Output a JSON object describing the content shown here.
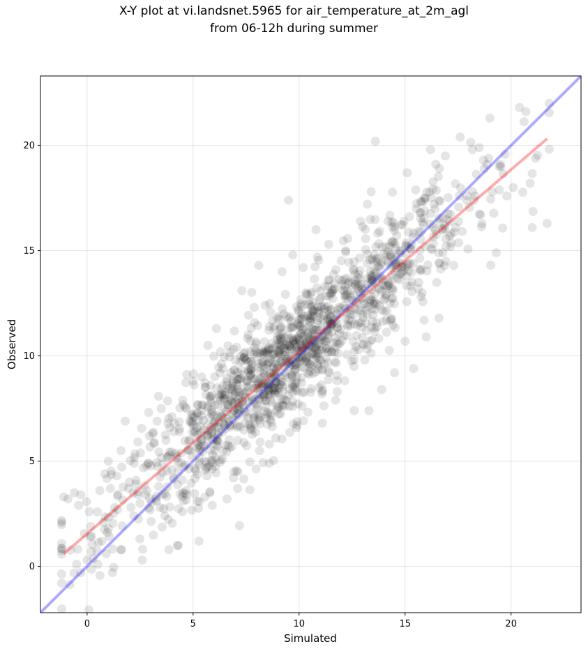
{
  "chart_data": {
    "type": "scatter",
    "title": "X-Y plot at vi.landsnet.5965 for air_temperature_at_2m_agl",
    "subtitle": "from 06-12h during summer",
    "xlabel": "Simulated",
    "ylabel": "Observed",
    "xlim": [
      -2.2,
      23.3
    ],
    "ylim": [
      -2.2,
      23.3
    ],
    "xticks": [
      0,
      5,
      10,
      15,
      20
    ],
    "yticks": [
      0,
      5,
      10,
      15,
      20
    ],
    "grid": true,
    "marker_color": "#000000",
    "marker_alpha": 0.1,
    "reference_line": {
      "slope": 1.0,
      "intercept": 0.0,
      "color": "#0000ff"
    },
    "fit_line": {
      "slope": 0.865,
      "intercept": 1.55,
      "x_range": [
        -1.1,
        21.7
      ],
      "color": "#ff0000"
    },
    "n_points": 1500,
    "points": [
      [
        -1.1,
        3.3
      ],
      [
        -0.9,
        3.2
      ],
      [
        -0.6,
        3.5
      ],
      [
        -0.3,
        3.4
      ],
      [
        -0.4,
        2.9
      ],
      [
        0.1,
        2.6
      ],
      [
        -0.5,
        0.1
      ],
      [
        -0.3,
        -0.3
      ],
      [
        0.0,
        0.3
      ],
      [
        0.2,
        0.7
      ],
      [
        0.5,
        0.1
      ],
      [
        0.7,
        1.2
      ],
      [
        0.9,
        0.6
      ],
      [
        1.2,
        -0.3
      ],
      [
        1.0,
        1.8
      ],
      [
        1.3,
        2.8
      ],
      [
        0.6,
        3.6
      ],
      [
        1.1,
        3.7
      ],
      [
        1.4,
        4.3
      ],
      [
        1.6,
        5.5
      ],
      [
        1.8,
        6.9
      ],
      [
        1.0,
        5.0
      ],
      [
        2.0,
        4.0
      ],
      [
        2.6,
        0.3
      ],
      [
        2.2,
        2.4
      ],
      [
        2.5,
        3.0
      ],
      [
        2.9,
        4.9
      ],
      [
        3.1,
        6.3
      ],
      [
        3.3,
        6.9
      ],
      [
        3.5,
        7.5
      ],
      [
        3.8,
        5.2
      ],
      [
        4.1,
        6.4
      ],
      [
        4.3,
        1.0
      ],
      [
        4.5,
        2.6
      ],
      [
        4.7,
        3.4
      ],
      [
        5.2,
        3.1
      ],
      [
        5.0,
        8.8
      ],
      [
        5.4,
        9.0
      ],
      [
        5.7,
        10.5
      ],
      [
        6.1,
        11.3
      ],
      [
        6.3,
        10.2
      ],
      [
        5.9,
        2.9
      ],
      [
        6.6,
        3.2
      ],
      [
        7.1,
        3.7
      ],
      [
        6.9,
        4.2
      ],
      [
        7.3,
        13.1
      ],
      [
        7.6,
        11.0
      ],
      [
        8.1,
        14.3
      ],
      [
        8.4,
        12.4
      ],
      [
        8.6,
        4.9
      ],
      [
        8.9,
        6.1
      ],
      [
        9.2,
        14.0
      ],
      [
        9.5,
        17.4
      ],
      [
        9.7,
        14.8
      ],
      [
        9.9,
        6.7
      ],
      [
        10.2,
        14.2
      ],
      [
        10.5,
        11.8
      ],
      [
        10.8,
        16.0
      ],
      [
        11.1,
        6.8
      ],
      [
        11.4,
        15.3
      ],
      [
        11.8,
        8.3
      ],
      [
        12.2,
        15.0
      ],
      [
        12.6,
        7.4
      ],
      [
        12.9,
        16.4
      ],
      [
        13.3,
        7.4
      ],
      [
        13.6,
        20.2
      ],
      [
        13.4,
        17.8
      ],
      [
        13.9,
        8.4
      ],
      [
        14.2,
        16.4
      ],
      [
        14.5,
        9.2
      ],
      [
        14.8,
        13.9
      ],
      [
        15.1,
        18.7
      ],
      [
        15.4,
        9.4
      ],
      [
        15.7,
        16.8
      ],
      [
        15.9,
        11.7
      ],
      [
        16.2,
        19.8
      ],
      [
        16.6,
        11.8
      ],
      [
        16.9,
        19.5
      ],
      [
        17.3,
        14.3
      ],
      [
        17.6,
        20.4
      ],
      [
        17.9,
        17.4
      ],
      [
        18.3,
        17.6
      ],
      [
        18.7,
        19.3
      ],
      [
        19.0,
        21.3
      ],
      [
        19.3,
        14.9
      ],
      [
        19.5,
        19.1
      ],
      [
        19.8,
        17.6
      ],
      [
        20.1,
        18.0
      ],
      [
        20.4,
        21.8
      ],
      [
        20.7,
        21.6
      ],
      [
        21.0,
        16.1
      ],
      [
        20.9,
        18.2
      ],
      [
        21.7,
        16.3
      ],
      [
        21.8,
        22.0
      ],
      [
        15.0,
        10.7
      ],
      [
        16.0,
        10.9
      ],
      [
        17.1,
        16.4
      ],
      [
        18.5,
        19.9
      ],
      [
        13.1,
        9.8
      ],
      [
        12.3,
        11.4
      ]
    ]
  }
}
